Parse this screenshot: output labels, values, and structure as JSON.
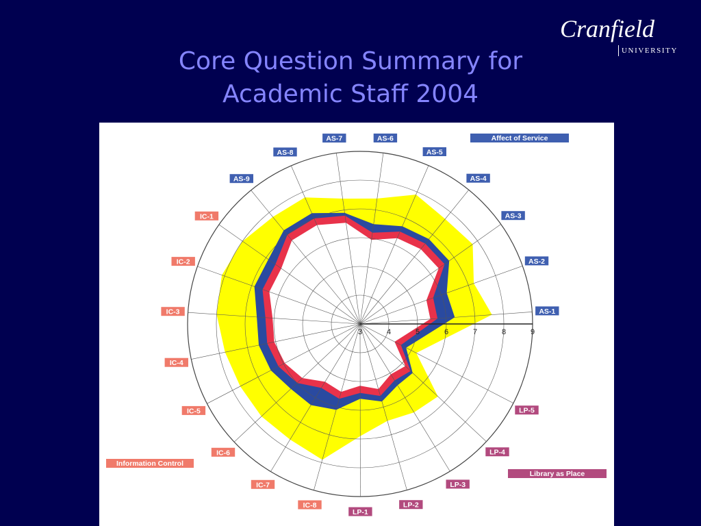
{
  "slide": {
    "title_line1": "Core Question Summary for",
    "title_line2": "Academic Staff 2004"
  },
  "logo": {
    "name": "Cranfield",
    "subtitle": "UNIVERSITY"
  },
  "colors": {
    "background": "#000050",
    "title": "#8585ff",
    "affect_of_service": "#3f5fb0",
    "information_control": "#f07a6a",
    "library_as_place": "#b24a7e",
    "perceived_band": "#ffff00",
    "minimum_area": "#e8324a",
    "adequacy_band": "#2a4aa0"
  },
  "chart_data": {
    "type": "radar",
    "scale_min": 3,
    "scale_max": 9,
    "tick_labels": [
      "3",
      "4",
      "5",
      "6",
      "7",
      "8",
      "9"
    ],
    "axes": [
      "AS-1",
      "AS-2",
      "AS-3",
      "AS-4",
      "AS-5",
      "AS-6",
      "AS-7",
      "AS-8",
      "AS-9",
      "IC-1",
      "IC-2",
      "IC-3",
      "IC-4",
      "IC-5",
      "IC-6",
      "IC-7",
      "IC-8",
      "LP-1",
      "LP-2",
      "LP-3",
      "LP-4",
      "LP-5"
    ],
    "axis_groups": [
      "AS",
      "AS",
      "AS",
      "AS",
      "AS",
      "AS",
      "AS",
      "AS",
      "AS",
      "IC",
      "IC",
      "IC",
      "IC",
      "IC",
      "IC",
      "IC",
      "IC",
      "LP",
      "LP",
      "LP",
      "LP",
      "LP"
    ],
    "groups": {
      "AS": "Affect of Service",
      "IC": "Information Control",
      "LP": "Library as Place"
    },
    "legend": [
      "Affect of Service",
      "Information Control",
      "Library as Place"
    ],
    "outer_values": [
      7.6,
      7.2,
      7.8,
      7.7,
      7.9,
      7.4,
      7.4,
      7.8,
      7.8,
      8.0,
      8.1,
      8.0,
      7.8,
      7.7,
      7.7,
      7.7,
      7.9,
      6.9,
      6.5,
      6.6,
      6.7,
      5.2
    ],
    "blue_values": [
      6.3,
      6.2,
      6.8,
      6.8,
      6.7,
      6.5,
      6.9,
      7.2,
      7.2,
      6.9,
      6.9,
      6.6,
      6.6,
      6.5,
      6.3,
      6.3,
      6.1,
      5.6,
      5.8,
      5.5,
      5.5,
      4.8
    ],
    "inner_values": [
      5.7,
      5.7,
      6.6,
      6.6,
      6.5,
      6.2,
      6.8,
      7.0,
      7.0,
      6.6,
      6.6,
      6.3,
      6.3,
      6.2,
      6.0,
      5.6,
      5.7,
      5.4,
      5.6,
      5.3,
      5.4,
      4.6
    ]
  }
}
